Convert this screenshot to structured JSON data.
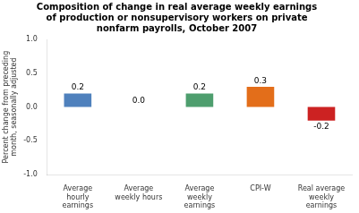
{
  "chart_data": {
    "type": "bar",
    "title": "Composition of change in real average weekly earnings\nof production or nonsupervisory workers on private\nnonfarm payrolls, October 2007",
    "categories": [
      "Average\nhourly\nearnings",
      "Average\nweekly hours",
      "Average\nweekly\nearnings",
      "CPI-W",
      "Real average\nweekly\nearnings"
    ],
    "values": [
      0.2,
      0.0,
      0.2,
      0.3,
      -0.2
    ],
    "value_labels": [
      "0.2",
      "0.0",
      "0.2",
      "0.3",
      "-0.2"
    ],
    "data_labels": true,
    "colors": [
      "#4f81bd",
      "#4f81bd",
      "#4e9e6e",
      "#e36e1a",
      "#cc2222"
    ],
    "ylabel": "Percent change from preceding\nmonth, seasonally adjusted",
    "ylim": [
      -1.0,
      1.0
    ],
    "yticks": [
      {
        "value": -1.0,
        "label": "-1.0"
      },
      {
        "value": -0.5,
        "label": "-0.5"
      },
      {
        "value": 0.0,
        "label": "0.0"
      },
      {
        "value": 0.5,
        "label": "0.5"
      },
      {
        "value": 1.0,
        "label": "1.0"
      }
    ],
    "grid": false
  }
}
